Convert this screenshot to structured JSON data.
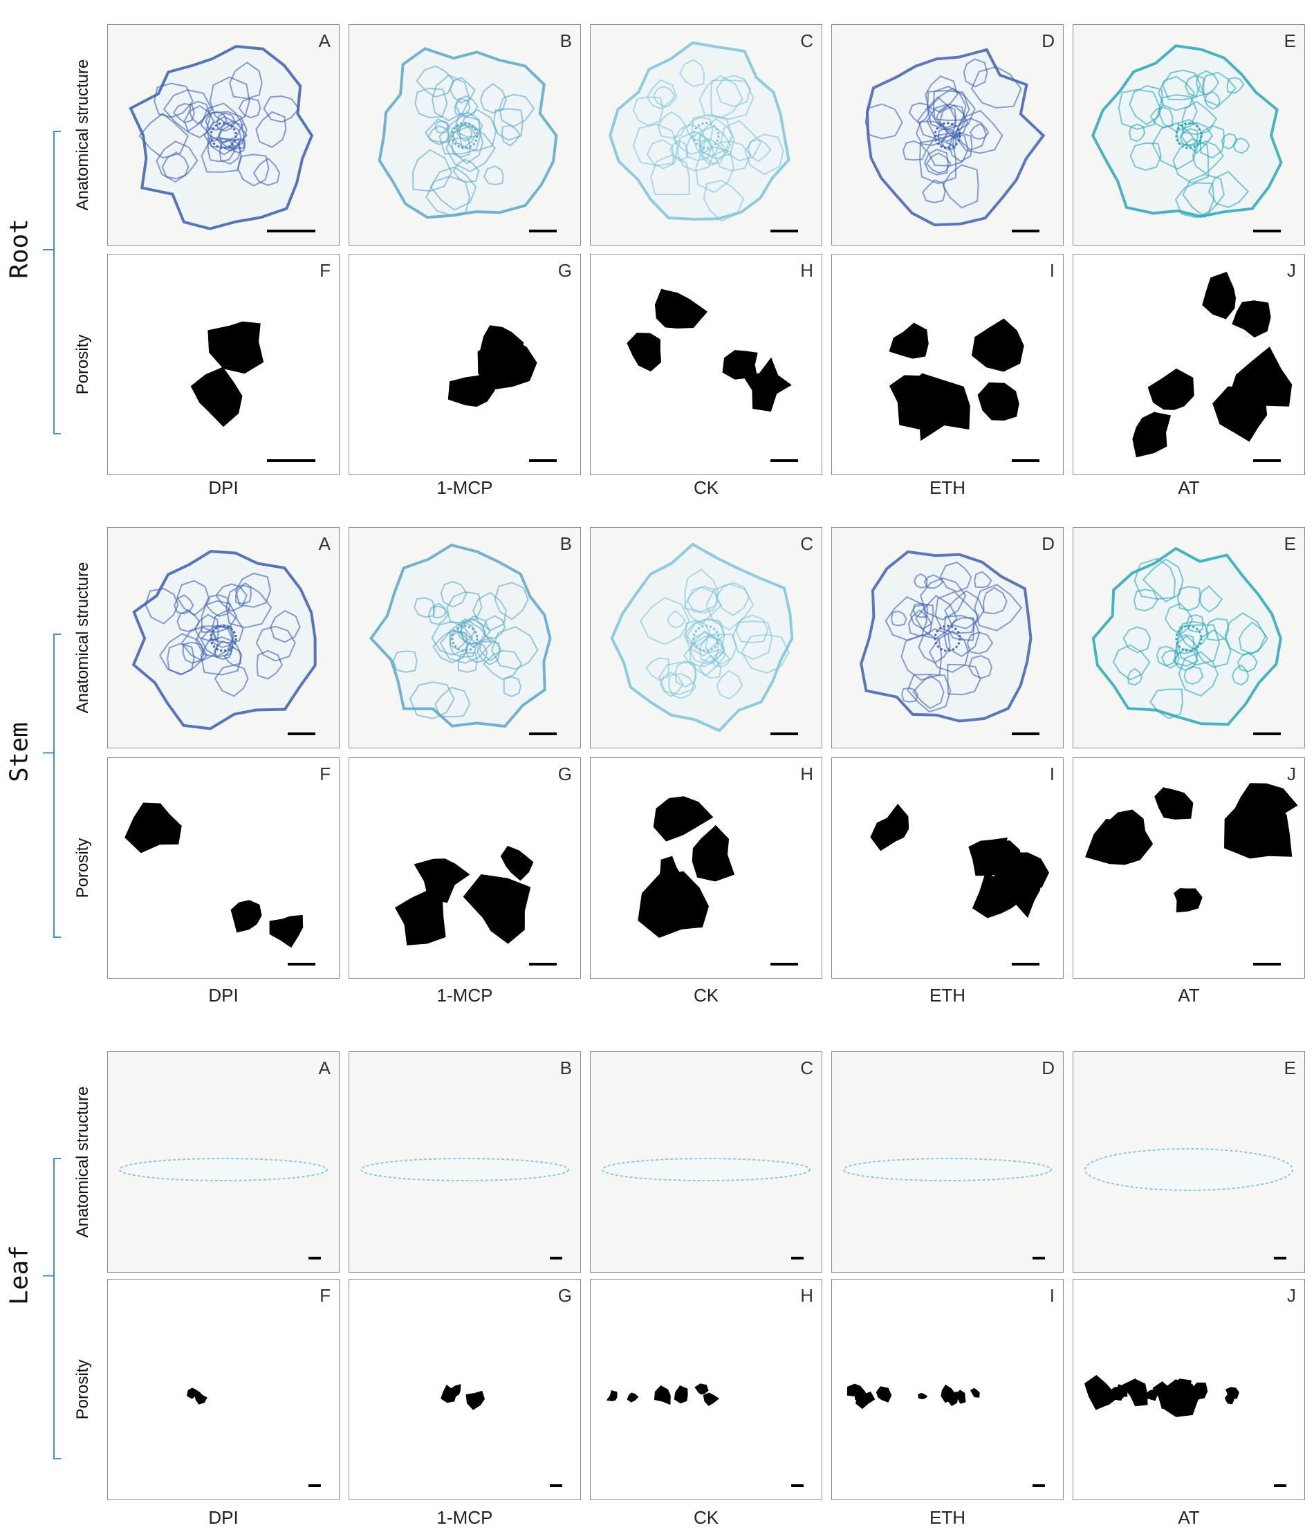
{
  "sections": [
    {
      "label": "Root",
      "rows": [
        "Anatomical structure",
        "Porosity"
      ],
      "panels": [
        [
          "A",
          "B",
          "C",
          "D",
          "E"
        ],
        [
          "F",
          "G",
          "H",
          "I",
          "J"
        ]
      ],
      "columns": [
        "DPI",
        "1-MCP",
        "CK",
        "ETH",
        "AT"
      ]
    },
    {
      "label": "Stem",
      "rows": [
        "Anatomical structure",
        "Porosity"
      ],
      "panels": [
        [
          "A",
          "B",
          "C",
          "D",
          "E"
        ],
        [
          "F",
          "G",
          "H",
          "I",
          "J"
        ]
      ],
      "columns": [
        "DPI",
        "1-MCP",
        "CK",
        "ETH",
        "AT"
      ]
    },
    {
      "label": "Leaf",
      "rows": [
        "Anatomical structure",
        "Porosity"
      ],
      "panels": [
        [
          "A",
          "B",
          "C",
          "D",
          "E"
        ],
        [
          "F",
          "G",
          "H",
          "I",
          "J"
        ]
      ],
      "columns": [
        "DPI",
        "1-MCP",
        "CK",
        "ETH",
        "AT"
      ]
    }
  ]
}
